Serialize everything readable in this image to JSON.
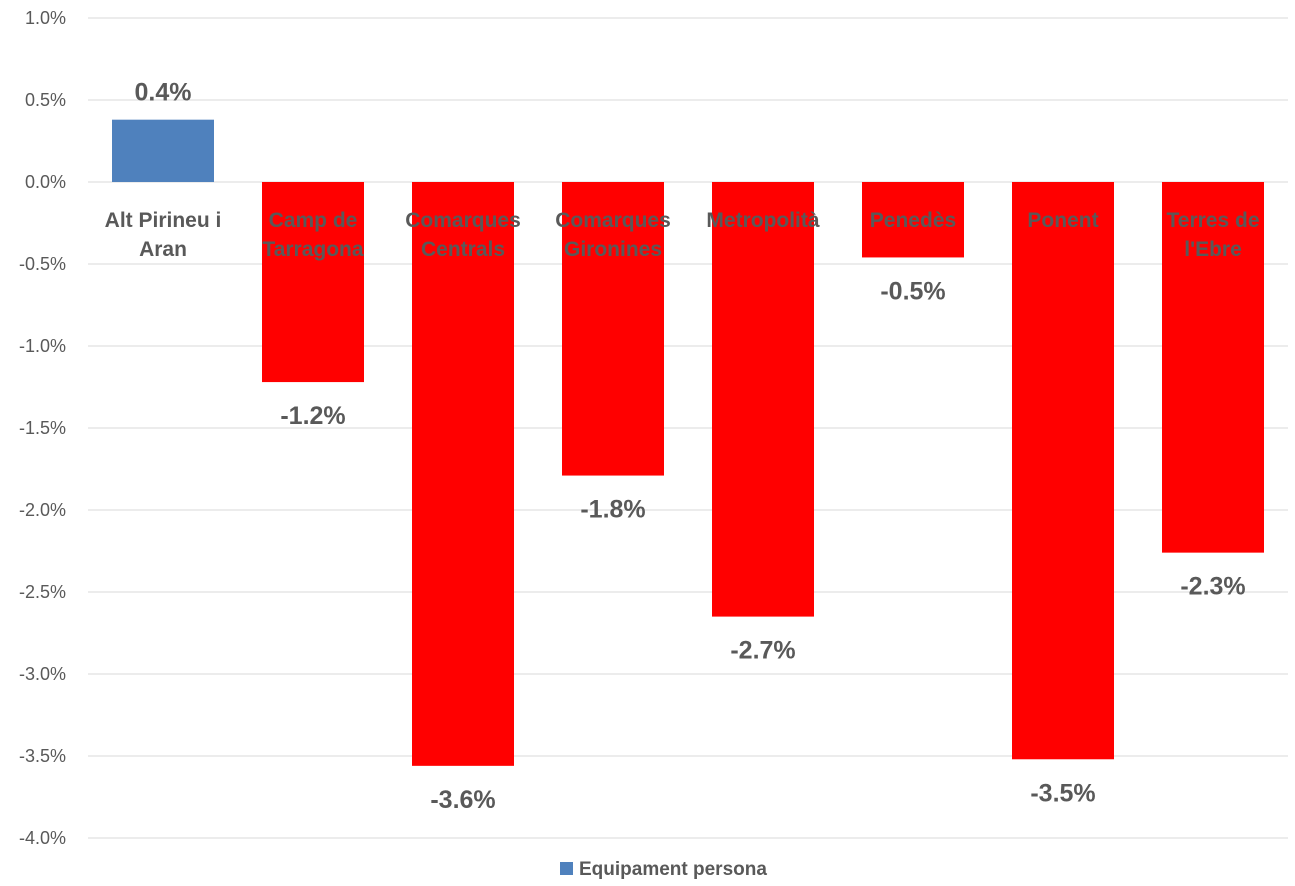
{
  "chart_data": {
    "type": "bar",
    "categories": [
      [
        "Alt Pirineu i",
        "Aran"
      ],
      [
        "Camp de",
        "Tarragona"
      ],
      [
        "Comarques",
        "Centrals"
      ],
      [
        "Comarques",
        "Gironines"
      ],
      [
        "Metropolità"
      ],
      [
        "Penedès"
      ],
      [
        "Ponent"
      ],
      [
        "Terres de",
        "l'Ebre"
      ]
    ],
    "series": [
      {
        "name": "Equipament persona",
        "values": [
          0.38,
          -1.22,
          -3.56,
          -1.79,
          -2.65,
          -0.46,
          -3.52,
          -2.26
        ],
        "labels": [
          "0.4%",
          "-1.2%",
          "-3.6%",
          "-1.8%",
          "-2.7%",
          "-0.5%",
          "-3.5%",
          "-2.3%"
        ]
      }
    ],
    "colors": {
      "positive": "#4f81bd",
      "negative": "#ff0000",
      "grid": "#d9d9d9",
      "text": "#595959"
    },
    "ylim": [
      -4.0,
      1.0
    ],
    "yticks": [
      1.0,
      0.5,
      0.0,
      -0.5,
      -1.0,
      -1.5,
      -2.0,
      -2.5,
      -3.0,
      -3.5,
      -4.0
    ],
    "ytick_labels": [
      "1.0%",
      "0.5%",
      "0.0%",
      "-0.5%",
      "-1.0%",
      "-1.5%",
      "-2.0%",
      "-2.5%",
      "-3.0%",
      "-3.5%",
      "-4.0%"
    ],
    "grid": true,
    "legend": "bottom-center",
    "title": "",
    "xlabel": "",
    "ylabel": ""
  }
}
